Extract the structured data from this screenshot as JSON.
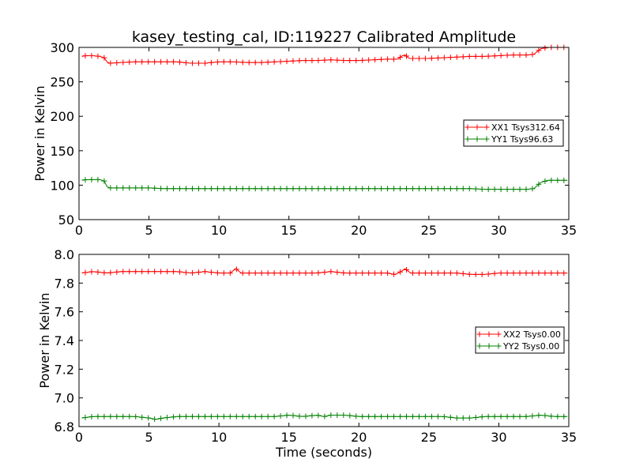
{
  "title": "kasey_testing_cal, ID:119227 Calibrated Amplitude",
  "chart_data": [
    {
      "type": "line",
      "panel": "top",
      "xlabel": "",
      "ylabel": "Power in Kelvin",
      "xlim": [
        0,
        35
      ],
      "ylim": [
        50,
        300
      ],
      "xticks": [
        0,
        5,
        10,
        15,
        20,
        25,
        30,
        35
      ],
      "yticks": [
        50,
        100,
        150,
        200,
        250,
        300
      ],
      "grid": false,
      "legend": "center-right",
      "series": [
        {
          "name": "XX1 Tsys312.64",
          "color": "#ff0000",
          "x": [
            0.2,
            0.5,
            1.0,
            1.5,
            1.8,
            2.0,
            2.2,
            3,
            4,
            5,
            6,
            7,
            8,
            9,
            10,
            11,
            12,
            13,
            14,
            15,
            16,
            17,
            18,
            19,
            20,
            21,
            22,
            22.8,
            23.1,
            23.3,
            23.6,
            24,
            25,
            26,
            27,
            28,
            29,
            30,
            31,
            32,
            32.5,
            33.0,
            33.5,
            34,
            34.9
          ],
          "y": [
            287,
            288,
            288,
            287,
            285,
            279,
            277,
            278,
            279,
            279,
            279,
            279,
            277,
            277,
            279,
            279,
            278,
            278,
            279,
            280,
            281,
            281,
            282,
            281,
            281,
            282,
            283,
            283,
            288,
            289,
            284,
            284,
            284,
            285,
            286,
            287,
            287,
            288,
            289,
            289,
            290,
            298,
            300,
            300,
            300
          ]
        },
        {
          "name": "YY1 Tsys96.63",
          "color": "#008000",
          "x": [
            0.2,
            0.5,
            1.0,
            1.5,
            1.8,
            2.0,
            2.2,
            3,
            4,
            5,
            6,
            7,
            8,
            9,
            10,
            11,
            12,
            13,
            14,
            15,
            16,
            17,
            18,
            19,
            20,
            21,
            22,
            23,
            24,
            25,
            26,
            27,
            28,
            29,
            30,
            31,
            32,
            32.5,
            33.0,
            33.5,
            34,
            34.9
          ],
          "y": [
            107,
            108,
            108,
            108,
            106,
            98,
            96,
            96,
            96,
            96,
            95,
            95,
            95,
            95,
            95,
            95,
            95,
            95,
            95,
            95,
            95,
            95,
            95,
            95,
            95,
            95,
            95,
            95,
            95,
            95,
            95,
            95,
            95,
            94,
            94,
            94,
            94,
            95,
            104,
            107,
            107,
            107
          ]
        }
      ]
    },
    {
      "type": "line",
      "panel": "bottom",
      "xlabel": "Time (seconds)",
      "ylabel": "Power in Kelvin",
      "xlim": [
        0,
        35
      ],
      "ylim": [
        6.8,
        8.0
      ],
      "xticks": [
        0,
        5,
        10,
        15,
        20,
        25,
        30,
        35
      ],
      "yticks": [
        6.8,
        7.0,
        7.2,
        7.4,
        7.6,
        7.8,
        8.0
      ],
      "grid": false,
      "legend": "center-right",
      "series": [
        {
          "name": "XX2 Tsys0.00",
          "color": "#ff0000",
          "x": [
            0.2,
            1,
            2,
            3,
            4,
            5,
            6,
            7,
            8,
            9,
            10,
            10.8,
            11.2,
            11.6,
            12,
            13,
            14,
            15,
            16,
            17,
            18,
            19,
            20,
            21,
            22,
            22.6,
            23.0,
            23.3,
            23.7,
            24,
            25,
            26,
            27,
            28,
            29,
            30,
            31,
            32,
            33,
            34,
            34.9
          ],
          "y": [
            7.87,
            7.88,
            7.87,
            7.88,
            7.88,
            7.88,
            7.88,
            7.88,
            7.87,
            7.88,
            7.87,
            7.87,
            7.9,
            7.87,
            7.87,
            7.87,
            7.87,
            7.87,
            7.87,
            7.87,
            7.88,
            7.87,
            7.87,
            7.87,
            7.87,
            7.86,
            7.88,
            7.9,
            7.87,
            7.87,
            7.87,
            7.87,
            7.87,
            7.86,
            7.86,
            7.87,
            7.87,
            7.87,
            7.87,
            7.87,
            7.87
          ]
        },
        {
          "name": "YY2 Tsys0.00",
          "color": "#008000",
          "x": [
            0.2,
            1,
            2,
            3,
            4,
            5,
            5.5,
            6,
            7,
            8,
            9,
            10,
            11,
            12,
            13,
            14,
            15,
            16,
            17,
            17.5,
            18,
            19,
            20,
            21,
            22,
            23,
            24,
            25,
            26,
            27,
            28,
            29,
            30,
            31,
            32,
            33,
            34,
            34.9
          ],
          "y": [
            6.86,
            6.87,
            6.87,
            6.87,
            6.87,
            6.86,
            6.85,
            6.86,
            6.87,
            6.87,
            6.87,
            6.87,
            6.87,
            6.87,
            6.87,
            6.87,
            6.88,
            6.87,
            6.88,
            6.87,
            6.88,
            6.88,
            6.87,
            6.87,
            6.87,
            6.87,
            6.87,
            6.87,
            6.87,
            6.86,
            6.86,
            6.87,
            6.87,
            6.87,
            6.87,
            6.88,
            6.87,
            6.87
          ]
        }
      ]
    }
  ]
}
